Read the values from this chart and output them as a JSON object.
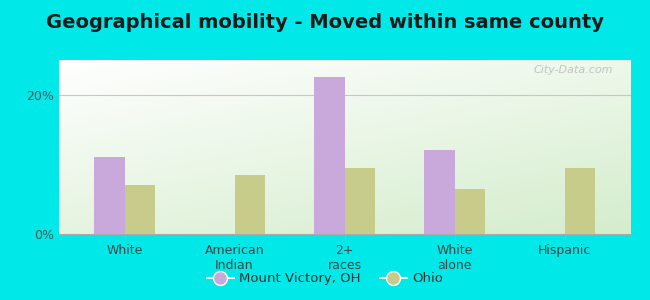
{
  "title": "Geographical mobility - Moved within same county",
  "categories": [
    "White",
    "American\nIndian",
    "2+\nraces",
    "White\nalone",
    "Hispanic"
  ],
  "mount_victory_values": [
    11.0,
    0,
    22.5,
    12.0,
    0
  ],
  "ohio_values": [
    7.0,
    8.5,
    9.5,
    6.5,
    9.5
  ],
  "bar_color_mv": "#c9a8dc",
  "bar_color_ohio": "#c8cc8a",
  "outer_bg": "#00e8e8",
  "ylim": [
    0,
    25
  ],
  "yticks": [
    0,
    20
  ],
  "ytick_labels": [
    "0%",
    "20%"
  ],
  "legend_mv": "Mount Victory, OH",
  "legend_ohio": "Ohio",
  "watermark": "City-Data.com",
  "title_fontsize": 14,
  "tick_fontsize": 9
}
